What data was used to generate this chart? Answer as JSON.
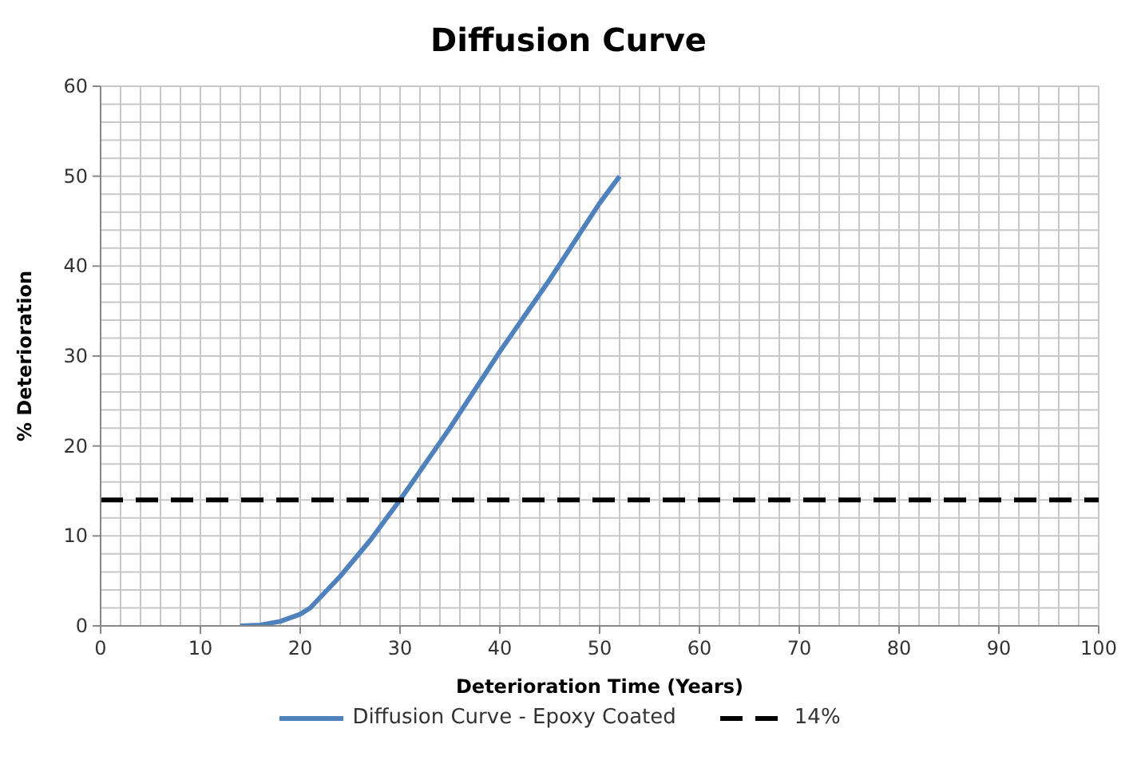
{
  "chart_data": {
    "type": "line",
    "title": "Diffusion Curve",
    "xlabel": "Deterioration Time (Years)",
    "ylabel": "% Deterioration",
    "series": [
      {
        "name": "Diffusion Curve - Epoxy Coated",
        "color": "#4f81bd",
        "x": [
          14,
          16,
          18,
          20,
          21,
          24,
          27,
          30,
          35,
          40,
          45,
          50,
          52
        ],
        "values": [
          0,
          0.1,
          0.5,
          1.3,
          2,
          5.5,
          9.5,
          14,
          22,
          30.5,
          38.5,
          47,
          50
        ]
      },
      {
        "name": "14%",
        "color": "#000000",
        "line_style": "dashed",
        "x": [
          0,
          100
        ],
        "values": [
          14,
          14
        ]
      }
    ],
    "xlim": [
      0,
      100
    ],
    "xticks": [
      0,
      {
        "value": 2,
        "label": null
      },
      {
        "value": 4,
        "label": null
      },
      {
        "value": 6,
        "label": null
      },
      {
        "value": 8,
        "label": null
      },
      10,
      {
        "value": 12,
        "label": null
      },
      {
        "value": 14,
        "label": null
      },
      {
        "value": 16,
        "label": null
      },
      {
        "value": 18,
        "label": null
      },
      20,
      {
        "value": 22,
        "label": null
      },
      {
        "value": 24,
        "label": null
      },
      {
        "value": 26,
        "label": null
      },
      {
        "value": 28,
        "label": null
      },
      30,
      {
        "value": 32,
        "label": null
      },
      {
        "value": 34,
        "label": null
      },
      {
        "value": 36,
        "label": null
      },
      {
        "value": 38,
        "label": null
      },
      40,
      {
        "value": 42,
        "label": null
      },
      {
        "value": 44,
        "label": null
      },
      {
        "value": 46,
        "label": null
      },
      {
        "value": 48,
        "label": null
      },
      50,
      {
        "value": 52,
        "label": null
      },
      {
        "value": 54,
        "label": null
      },
      {
        "value": 56,
        "label": null
      },
      {
        "value": 58,
        "label": null
      },
      60,
      {
        "value": 62,
        "label": null
      },
      {
        "value": 64,
        "label": null
      },
      {
        "value": 66,
        "label": null
      },
      {
        "value": 68,
        "label": null
      },
      70,
      {
        "value": 72,
        "label": null
      },
      {
        "value": 74,
        "label": null
      },
      {
        "value": 76,
        "label": null
      },
      {
        "value": 78,
        "label": null
      },
      80,
      {
        "value": 82,
        "label": null
      },
      {
        "value": 84,
        "label": null
      },
      {
        "value": 86,
        "label": null
      },
      {
        "value": 88,
        "label": null
      },
      90,
      {
        "value": 92,
        "label": null
      },
      {
        "value": 94,
        "label": null
      },
      {
        "value": 96,
        "label": null
      },
      {
        "value": 98,
        "label": null
      },
      100
    ],
    "ylim": [
      0,
      60
    ],
    "yticks": [
      0,
      {
        "value": 2,
        "label": null
      },
      {
        "value": 4,
        "label": null
      },
      {
        "value": 6,
        "label": null
      },
      {
        "value": 8,
        "label": null
      },
      10,
      {
        "value": 12,
        "label": null
      },
      {
        "value": 14,
        "label": null
      },
      {
        "value": 16,
        "label": null
      },
      {
        "value": 18,
        "label": null
      },
      20,
      {
        "value": 22,
        "label": null
      },
      {
        "value": 24,
        "label": null
      },
      {
        "value": 26,
        "label": null
      },
      {
        "value": 28,
        "label": null
      },
      30,
      {
        "value": 32,
        "label": null
      },
      {
        "value": 34,
        "label": null
      },
      {
        "value": 36,
        "label": null
      },
      {
        "value": 38,
        "label": null
      },
      40,
      {
        "value": 42,
        "label": null
      },
      {
        "value": 44,
        "label": null
      },
      {
        "value": 46,
        "label": null
      },
      {
        "value": 48,
        "label": null
      },
      50,
      {
        "value": 52,
        "label": null
      },
      {
        "value": 54,
        "label": null
      },
      {
        "value": 56,
        "label": null
      },
      {
        "value": 58,
        "label": null
      },
      60
    ],
    "grid": true,
    "legend": "bottom",
    "marker": "none",
    "line_style": "solid"
  }
}
